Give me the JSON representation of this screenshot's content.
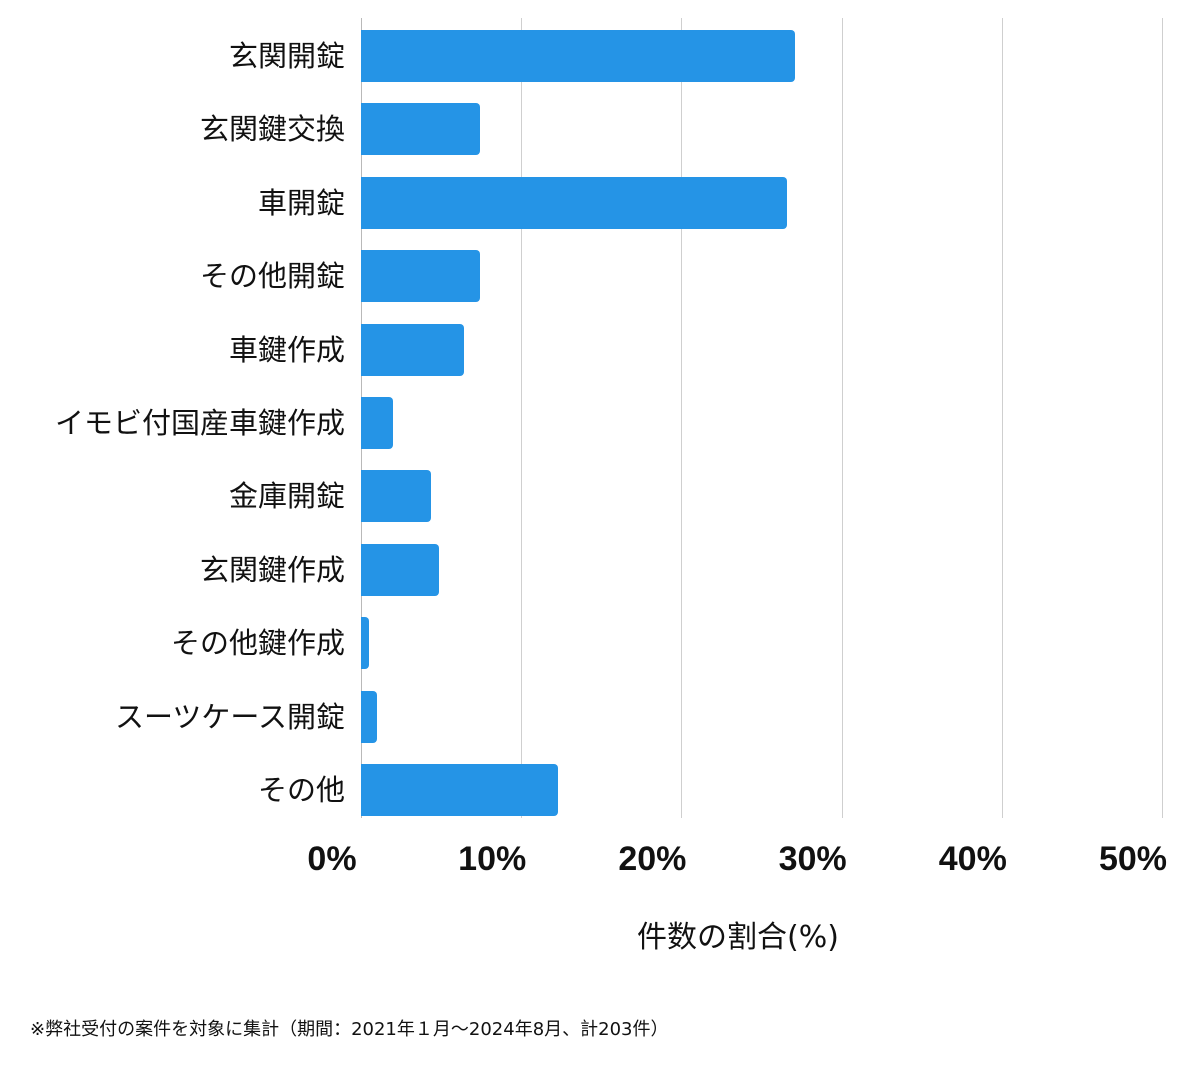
{
  "chart_data": {
    "type": "bar",
    "orientation": "horizontal",
    "title": "",
    "categories": [
      "玄関開錠",
      "玄関鍵交換",
      "車開錠",
      "その他開錠",
      "車鍵作成",
      "イモビ付国産車鍵作成",
      "金庫開錠",
      "玄関鍵作成",
      "その他鍵作成",
      "スーツケース開錠",
      "その他"
    ],
    "values": [
      27.1,
      7.4,
      26.6,
      7.4,
      6.4,
      2.0,
      4.4,
      4.9,
      0.5,
      1.0,
      12.3
    ],
    "xlabel": "件数の割合(%)",
    "ylabel": "",
    "xlim": [
      0,
      50
    ],
    "xticks": [
      "0%",
      "10%",
      "20%",
      "30%",
      "40%",
      "50%"
    ],
    "grid": true,
    "legend": null,
    "bar_color": "#2594e6",
    "annotations": [
      "※弊社受付の案件を対象に集計（期間：2021年１月〜2024年8月、計203件）"
    ]
  },
  "axis": {
    "x_title": "件数の割合(%)",
    "ticks": [
      "0%",
      "10%",
      "20%",
      "30%",
      "40%",
      "50%"
    ]
  },
  "labels": [
    "玄関開錠",
    "玄関鍵交換",
    "車開錠",
    "その他開錠",
    "車鍵作成",
    "イモビ付国産車鍵作成",
    "金庫開錠",
    "玄関鍵作成",
    "その他鍵作成",
    "スーツケース開錠",
    "その他"
  ],
  "footnote": "※弊社受付の案件を対象に集計（期間：2021年１月〜2024年8月、計203件）"
}
